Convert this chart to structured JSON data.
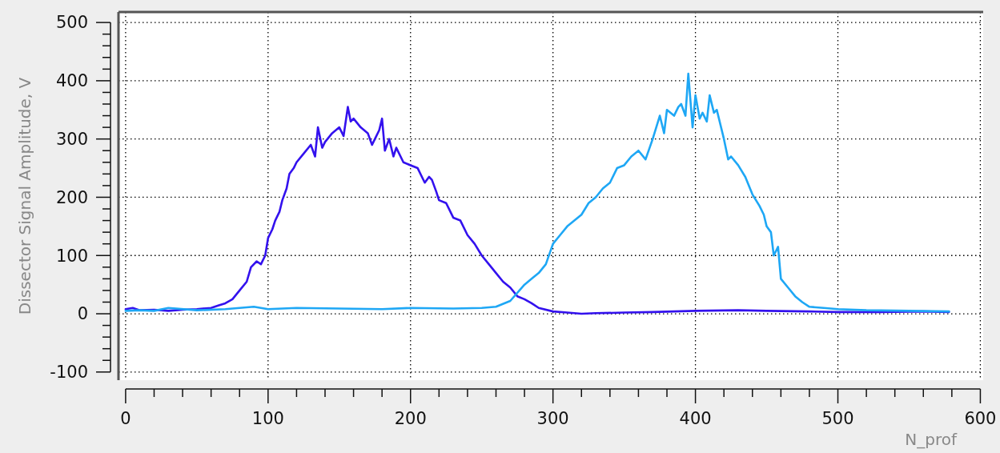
{
  "chart_data": {
    "type": "line",
    "ylabel": "Dissector Signal Amplitude, V",
    "xlabel": "N_prof",
    "xlim": [
      -5,
      602
    ],
    "ylim": [
      -114,
      518
    ],
    "xticks": [
      0,
      {
        "value": 20,
        "label": null
      },
      {
        "value": 40,
        "label": null
      },
      {
        "value": 60,
        "label": null
      },
      {
        "value": 80,
        "label": null
      },
      100,
      {
        "value": 120,
        "label": null
      },
      {
        "value": 140,
        "label": null
      },
      {
        "value": 160,
        "label": null
      },
      {
        "value": 180,
        "label": null
      },
      200,
      {
        "value": 220,
        "label": null
      },
      {
        "value": 240,
        "label": null
      },
      {
        "value": 260,
        "label": null
      },
      {
        "value": 280,
        "label": null
      },
      300,
      {
        "value": 320,
        "label": null
      },
      {
        "value": 340,
        "label": null
      },
      {
        "value": 360,
        "label": null
      },
      {
        "value": 380,
        "label": null
      },
      400,
      {
        "value": 420,
        "label": null
      },
      {
        "value": 440,
        "label": null
      },
      {
        "value": 460,
        "label": null
      },
      {
        "value": 480,
        "label": null
      },
      500,
      {
        "value": 520,
        "label": null
      },
      {
        "value": 540,
        "label": null
      },
      {
        "value": 560,
        "label": null
      },
      {
        "value": 580,
        "label": null
      },
      600
    ],
    "yticks": [
      -100,
      {
        "value": -80,
        "label": null
      },
      {
        "value": -60,
        "label": null
      },
      {
        "value": -40,
        "label": null
      },
      {
        "value": -20,
        "label": null
      },
      0,
      {
        "value": 20,
        "label": null
      },
      {
        "value": 40,
        "label": null
      },
      {
        "value": 60,
        "label": null
      },
      {
        "value": 80,
        "label": null
      },
      100,
      {
        "value": 120,
        "label": null
      },
      {
        "value": 140,
        "label": null
      },
      {
        "value": 160,
        "label": null
      },
      {
        "value": 180,
        "label": null
      },
      200,
      {
        "value": 220,
        "label": null
      },
      {
        "value": 240,
        "label": null
      },
      {
        "value": 260,
        "label": null
      },
      {
        "value": 280,
        "label": null
      },
      300,
      {
        "value": 320,
        "label": null
      },
      {
        "value": 340,
        "label": null
      },
      {
        "value": 360,
        "label": null
      },
      {
        "value": 380,
        "label": null
      },
      400,
      {
        "value": 420,
        "label": null
      },
      {
        "value": 440,
        "label": null
      },
      {
        "value": 460,
        "label": null
      },
      {
        "value": 480,
        "label": null
      },
      500
    ],
    "grid": true,
    "line_style": "solid",
    "marker": "none",
    "series": [
      {
        "color": "#3311ee",
        "x": [
          0,
          5,
          10,
          20,
          30,
          40,
          50,
          60,
          65,
          70,
          75,
          80,
          85,
          88,
          92,
          95,
          98,
          100,
          103,
          105,
          108,
          110,
          113,
          115,
          118,
          120,
          125,
          130,
          133,
          135,
          138,
          140,
          145,
          150,
          153,
          156,
          158,
          160,
          165,
          170,
          173,
          175,
          178,
          180,
          182,
          185,
          188,
          190,
          195,
          200,
          205,
          210,
          213,
          215,
          218,
          220,
          225,
          230,
          235,
          240,
          245,
          250,
          255,
          260,
          265,
          270,
          275,
          280,
          285,
          290,
          300,
          310,
          320,
          330,
          350,
          370,
          400,
          430,
          450,
          480,
          500,
          530,
          560,
          578
        ],
        "values": [
          8,
          10,
          6,
          7,
          5,
          7,
          8,
          10,
          14,
          18,
          25,
          40,
          55,
          80,
          90,
          85,
          100,
          130,
          145,
          160,
          175,
          195,
          215,
          240,
          250,
          260,
          275,
          290,
          270,
          320,
          285,
          295,
          310,
          320,
          305,
          355,
          330,
          335,
          320,
          310,
          290,
          300,
          315,
          335,
          280,
          300,
          270,
          285,
          260,
          255,
          250,
          225,
          235,
          230,
          210,
          195,
          190,
          165,
          160,
          135,
          120,
          100,
          85,
          70,
          55,
          45,
          30,
          25,
          18,
          10,
          4,
          2,
          0,
          1,
          2,
          3,
          5,
          6,
          5,
          4,
          3,
          3,
          4,
          3
        ]
      },
      {
        "color": "#1ea7f5",
        "x": [
          0,
          10,
          20,
          30,
          50,
          70,
          90,
          100,
          120,
          150,
          180,
          200,
          230,
          250,
          260,
          270,
          280,
          285,
          290,
          295,
          300,
          305,
          310,
          320,
          325,
          330,
          335,
          340,
          345,
          350,
          355,
          360,
          365,
          370,
          375,
          378,
          380,
          385,
          388,
          390,
          393,
          395,
          398,
          400,
          403,
          405,
          408,
          410,
          413,
          415,
          420,
          423,
          425,
          430,
          435,
          440,
          445,
          448,
          450,
          453,
          455,
          458,
          460,
          465,
          470,
          475,
          480,
          490,
          500,
          520,
          550,
          578
        ],
        "values": [
          5,
          6,
          5,
          10,
          6,
          8,
          12,
          8,
          10,
          9,
          8,
          10,
          9,
          10,
          12,
          22,
          50,
          60,
          70,
          85,
          120,
          135,
          150,
          170,
          190,
          200,
          215,
          225,
          250,
          255,
          270,
          280,
          265,
          300,
          340,
          310,
          350,
          340,
          355,
          360,
          340,
          412,
          320,
          375,
          335,
          345,
          330,
          375,
          345,
          350,
          300,
          265,
          270,
          255,
          235,
          205,
          185,
          170,
          150,
          140,
          100,
          115,
          60,
          45,
          30,
          20,
          12,
          10,
          8,
          6,
          5,
          4
        ]
      }
    ]
  }
}
